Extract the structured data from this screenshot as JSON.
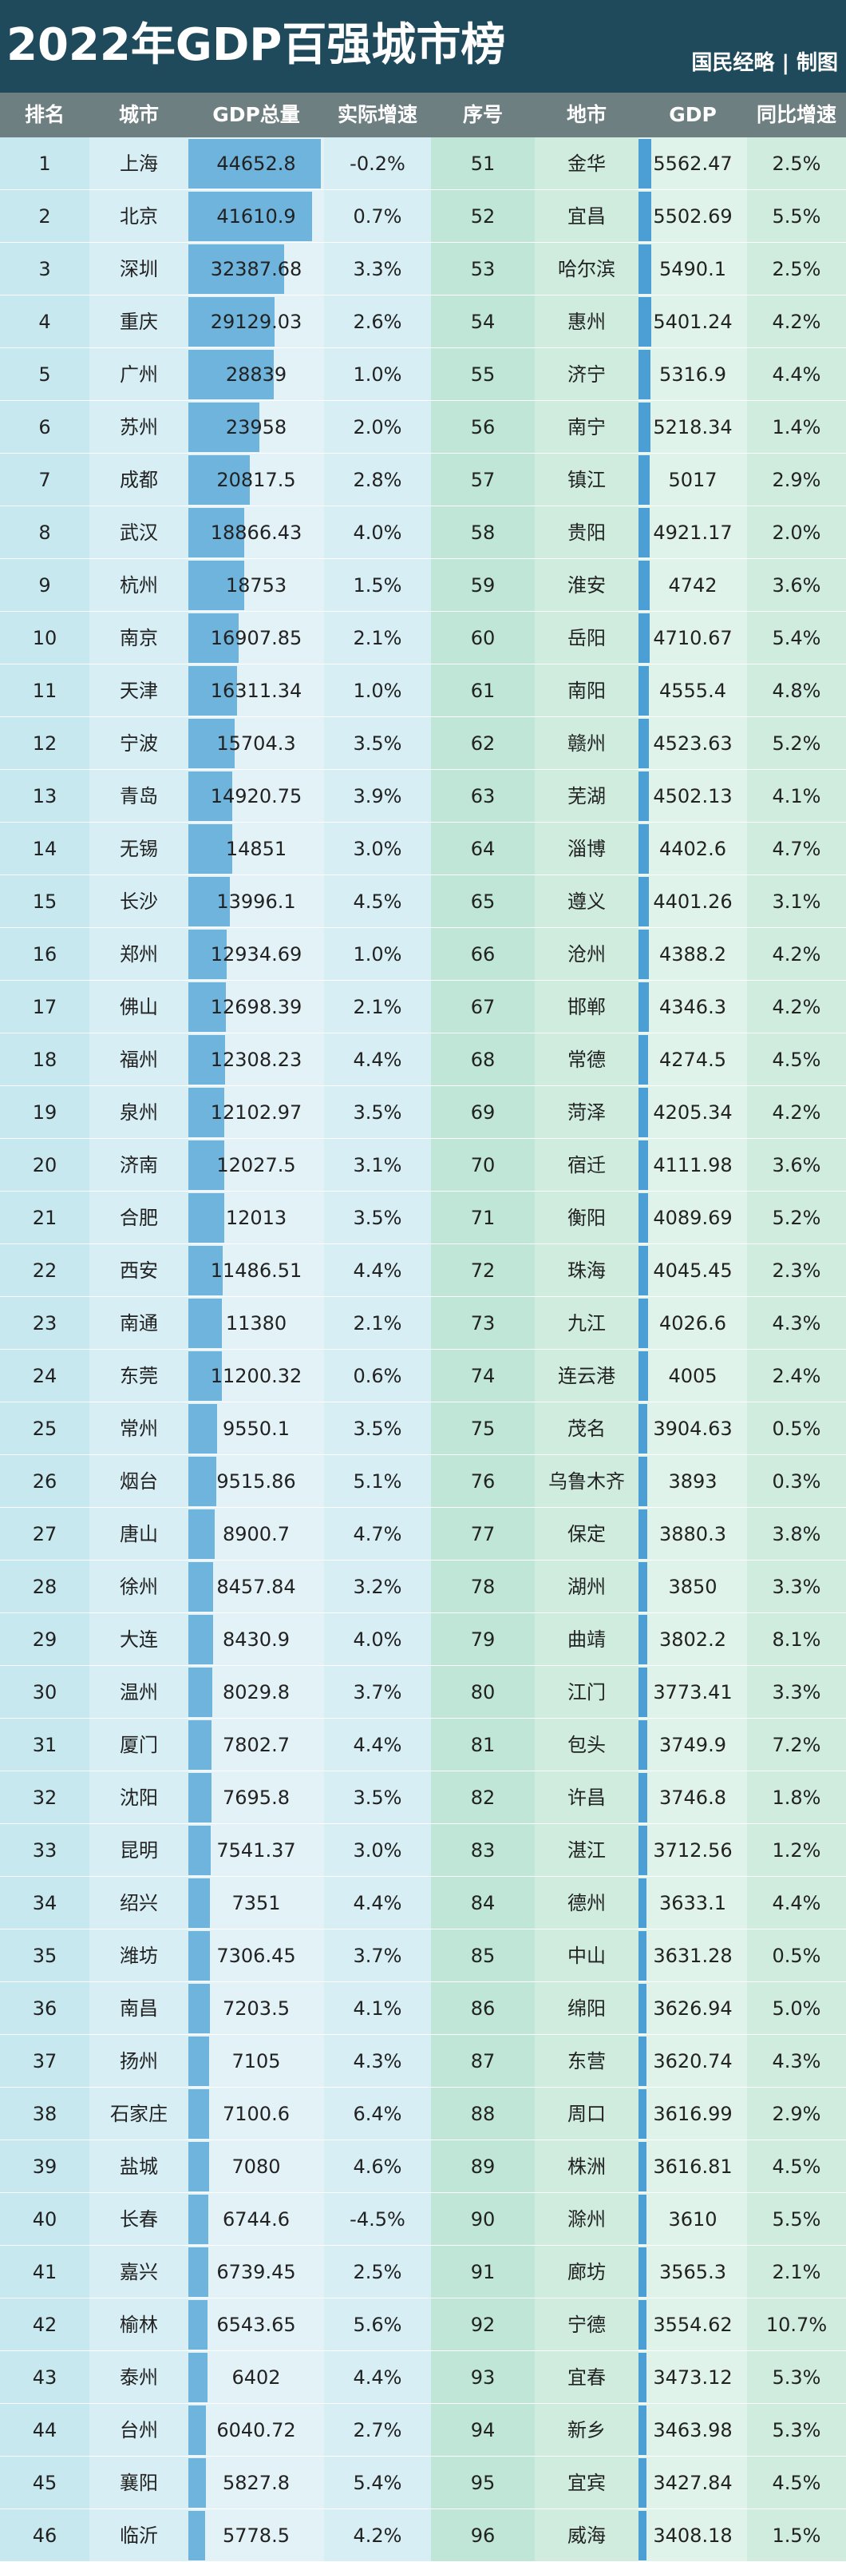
{
  "title": "2022年GDP百强城市榜",
  "brand": "国民经略 | 制图",
  "headers": [
    "排名",
    "城市",
    "GDP总量",
    "实际增速",
    "序号",
    "地市",
    "GDP",
    "同比增速"
  ],
  "colors": {
    "titlebar": "#1f4a5c",
    "header": "#6e7f82",
    "left_shade": "#c8e8f0",
    "right_shade": "#bfe6d6",
    "bar": "#6fb4dc",
    "bar_right": "#4b9fd4"
  },
  "left_max_gdp": 44652.8,
  "right_max_gdp": 5562.47,
  "left_rows": [
    {
      "rank": "1",
      "city": "上海",
      "gdp": "44652.8",
      "growth": "-0.2%"
    },
    {
      "rank": "2",
      "city": "北京",
      "gdp": "41610.9",
      "growth": "0.7%"
    },
    {
      "rank": "3",
      "city": "深圳",
      "gdp": "32387.68",
      "growth": "3.3%"
    },
    {
      "rank": "4",
      "city": "重庆",
      "gdp": "29129.03",
      "growth": "2.6%"
    },
    {
      "rank": "5",
      "city": "广州",
      "gdp": "28839",
      "growth": "1.0%"
    },
    {
      "rank": "6",
      "city": "苏州",
      "gdp": "23958",
      "growth": "2.0%"
    },
    {
      "rank": "7",
      "city": "成都",
      "gdp": "20817.5",
      "growth": "2.8%"
    },
    {
      "rank": "8",
      "city": "武汉",
      "gdp": "18866.43",
      "growth": "4.0%"
    },
    {
      "rank": "9",
      "city": "杭州",
      "gdp": "18753",
      "growth": "1.5%"
    },
    {
      "rank": "10",
      "city": "南京",
      "gdp": "16907.85",
      "growth": "2.1%"
    },
    {
      "rank": "11",
      "city": "天津",
      "gdp": "16311.34",
      "growth": "1.0%"
    },
    {
      "rank": "12",
      "city": "宁波",
      "gdp": "15704.3",
      "growth": "3.5%"
    },
    {
      "rank": "13",
      "city": "青岛",
      "gdp": "14920.75",
      "growth": "3.9%"
    },
    {
      "rank": "14",
      "city": "无锡",
      "gdp": "14851",
      "growth": "3.0%"
    },
    {
      "rank": "15",
      "city": "长沙",
      "gdp": "13996.1",
      "growth": "4.5%"
    },
    {
      "rank": "16",
      "city": "郑州",
      "gdp": "12934.69",
      "growth": "1.0%"
    },
    {
      "rank": "17",
      "city": "佛山",
      "gdp": "12698.39",
      "growth": "2.1%"
    },
    {
      "rank": "18",
      "city": "福州",
      "gdp": "12308.23",
      "growth": "4.4%"
    },
    {
      "rank": "19",
      "city": "泉州",
      "gdp": "12102.97",
      "growth": "3.5%"
    },
    {
      "rank": "20",
      "city": "济南",
      "gdp": "12027.5",
      "growth": "3.1%"
    },
    {
      "rank": "21",
      "city": "合肥",
      "gdp": "12013",
      "growth": "3.5%"
    },
    {
      "rank": "22",
      "city": "西安",
      "gdp": "11486.51",
      "growth": "4.4%"
    },
    {
      "rank": "23",
      "city": "南通",
      "gdp": "11380",
      "growth": "2.1%"
    },
    {
      "rank": "24",
      "city": "东莞",
      "gdp": "11200.32",
      "growth": "0.6%"
    },
    {
      "rank": "25",
      "city": "常州",
      "gdp": "9550.1",
      "growth": "3.5%"
    },
    {
      "rank": "26",
      "city": "烟台",
      "gdp": "9515.86",
      "growth": "5.1%"
    },
    {
      "rank": "27",
      "city": "唐山",
      "gdp": "8900.7",
      "growth": "4.7%"
    },
    {
      "rank": "28",
      "city": "徐州",
      "gdp": "8457.84",
      "growth": "3.2%"
    },
    {
      "rank": "29",
      "city": "大连",
      "gdp": "8430.9",
      "growth": "4.0%"
    },
    {
      "rank": "30",
      "city": "温州",
      "gdp": "8029.8",
      "growth": "3.7%"
    },
    {
      "rank": "31",
      "city": "厦门",
      "gdp": "7802.7",
      "growth": "4.4%"
    },
    {
      "rank": "32",
      "city": "沈阳",
      "gdp": "7695.8",
      "growth": "3.5%"
    },
    {
      "rank": "33",
      "city": "昆明",
      "gdp": "7541.37",
      "growth": "3.0%"
    },
    {
      "rank": "34",
      "city": "绍兴",
      "gdp": "7351",
      "growth": "4.4%"
    },
    {
      "rank": "35",
      "city": "潍坊",
      "gdp": "7306.45",
      "growth": "3.7%"
    },
    {
      "rank": "36",
      "city": "南昌",
      "gdp": "7203.5",
      "growth": "4.1%"
    },
    {
      "rank": "37",
      "city": "扬州",
      "gdp": "7105",
      "growth": "4.3%"
    },
    {
      "rank": "38",
      "city": "石家庄",
      "gdp": "7100.6",
      "growth": "6.4%"
    },
    {
      "rank": "39",
      "city": "盐城",
      "gdp": "7080",
      "growth": "4.6%"
    },
    {
      "rank": "40",
      "city": "长春",
      "gdp": "6744.6",
      "growth": "-4.5%"
    },
    {
      "rank": "41",
      "city": "嘉兴",
      "gdp": "6739.45",
      "growth": "2.5%"
    },
    {
      "rank": "42",
      "city": "榆林",
      "gdp": "6543.65",
      "growth": "5.6%"
    },
    {
      "rank": "43",
      "city": "泰州",
      "gdp": "6402",
      "growth": "4.4%"
    },
    {
      "rank": "44",
      "city": "台州",
      "gdp": "6040.72",
      "growth": "2.7%"
    },
    {
      "rank": "45",
      "city": "襄阳",
      "gdp": "5827.8",
      "growth": "5.4%"
    },
    {
      "rank": "46",
      "city": "临沂",
      "gdp": "5778.5",
      "growth": "4.2%"
    }
  ],
  "right_rows": [
    {
      "rank": "51",
      "city": "金华",
      "gdp": "5562.47",
      "growth": "2.5%"
    },
    {
      "rank": "52",
      "city": "宜昌",
      "gdp": "5502.69",
      "growth": "5.5%"
    },
    {
      "rank": "53",
      "city": "哈尔滨",
      "gdp": "5490.1",
      "growth": "2.5%"
    },
    {
      "rank": "54",
      "city": "惠州",
      "gdp": "5401.24",
      "growth": "4.2%"
    },
    {
      "rank": "55",
      "city": "济宁",
      "gdp": "5316.9",
      "growth": "4.4%"
    },
    {
      "rank": "56",
      "city": "南宁",
      "gdp": "5218.34",
      "growth": "1.4%"
    },
    {
      "rank": "57",
      "city": "镇江",
      "gdp": "5017",
      "growth": "2.9%"
    },
    {
      "rank": "58",
      "city": "贵阳",
      "gdp": "4921.17",
      "growth": "2.0%"
    },
    {
      "rank": "59",
      "city": "淮安",
      "gdp": "4742",
      "growth": "3.6%"
    },
    {
      "rank": "60",
      "city": "岳阳",
      "gdp": "4710.67",
      "growth": "5.4%"
    },
    {
      "rank": "61",
      "city": "南阳",
      "gdp": "4555.4",
      "growth": "4.8%"
    },
    {
      "rank": "62",
      "city": "赣州",
      "gdp": "4523.63",
      "growth": "5.2%"
    },
    {
      "rank": "63",
      "city": "芜湖",
      "gdp": "4502.13",
      "growth": "4.1%"
    },
    {
      "rank": "64",
      "city": "淄博",
      "gdp": "4402.6",
      "growth": "4.7%"
    },
    {
      "rank": "65",
      "city": "遵义",
      "gdp": "4401.26",
      "growth": "3.1%"
    },
    {
      "rank": "66",
      "city": "沧州",
      "gdp": "4388.2",
      "growth": "4.2%"
    },
    {
      "rank": "67",
      "city": "邯郸",
      "gdp": "4346.3",
      "growth": "4.2%"
    },
    {
      "rank": "68",
      "city": "常德",
      "gdp": "4274.5",
      "growth": "4.5%"
    },
    {
      "rank": "69",
      "city": "菏泽",
      "gdp": "4205.34",
      "growth": "4.2%"
    },
    {
      "rank": "70",
      "city": "宿迁",
      "gdp": "4111.98",
      "growth": "3.6%"
    },
    {
      "rank": "71",
      "city": "衡阳",
      "gdp": "4089.69",
      "growth": "5.2%"
    },
    {
      "rank": "72",
      "city": "珠海",
      "gdp": "4045.45",
      "growth": "2.3%"
    },
    {
      "rank": "73",
      "city": "九江",
      "gdp": "4026.6",
      "growth": "4.3%"
    },
    {
      "rank": "74",
      "city": "连云港",
      "gdp": "4005",
      "growth": "2.4%"
    },
    {
      "rank": "75",
      "city": "茂名",
      "gdp": "3904.63",
      "growth": "0.5%"
    },
    {
      "rank": "76",
      "city": "乌鲁木齐",
      "gdp": "3893",
      "growth": "0.3%"
    },
    {
      "rank": "77",
      "city": "保定",
      "gdp": "3880.3",
      "growth": "3.8%"
    },
    {
      "rank": "78",
      "city": "湖州",
      "gdp": "3850",
      "growth": "3.3%"
    },
    {
      "rank": "79",
      "city": "曲靖",
      "gdp": "3802.2",
      "growth": "8.1%"
    },
    {
      "rank": "80",
      "city": "江门",
      "gdp": "3773.41",
      "growth": "3.3%"
    },
    {
      "rank": "81",
      "city": "包头",
      "gdp": "3749.9",
      "growth": "7.2%"
    },
    {
      "rank": "82",
      "city": "许昌",
      "gdp": "3746.8",
      "growth": "1.8%"
    },
    {
      "rank": "83",
      "city": "湛江",
      "gdp": "3712.56",
      "growth": "1.2%"
    },
    {
      "rank": "84",
      "city": "德州",
      "gdp": "3633.1",
      "growth": "4.4%"
    },
    {
      "rank": "85",
      "city": "中山",
      "gdp": "3631.28",
      "growth": "0.5%"
    },
    {
      "rank": "86",
      "city": "绵阳",
      "gdp": "3626.94",
      "growth": "5.0%"
    },
    {
      "rank": "87",
      "city": "东营",
      "gdp": "3620.74",
      "growth": "4.3%"
    },
    {
      "rank": "88",
      "city": "周口",
      "gdp": "3616.99",
      "growth": "2.9%"
    },
    {
      "rank": "89",
      "city": "株洲",
      "gdp": "3616.81",
      "growth": "4.5%"
    },
    {
      "rank": "90",
      "city": "滁州",
      "gdp": "3610",
      "growth": "5.5%"
    },
    {
      "rank": "91",
      "city": "廊坊",
      "gdp": "3565.3",
      "growth": "2.1%"
    },
    {
      "rank": "92",
      "city": "宁德",
      "gdp": "3554.62",
      "growth": "10.7%"
    },
    {
      "rank": "93",
      "city": "宜春",
      "gdp": "3473.12",
      "growth": "5.3%"
    },
    {
      "rank": "94",
      "city": "新乡",
      "gdp": "3463.98",
      "growth": "5.3%"
    },
    {
      "rank": "95",
      "city": "宜宾",
      "gdp": "3427.84",
      "growth": "4.5%"
    },
    {
      "rank": "96",
      "city": "威海",
      "gdp": "3408.18",
      "growth": "1.5%"
    }
  ]
}
